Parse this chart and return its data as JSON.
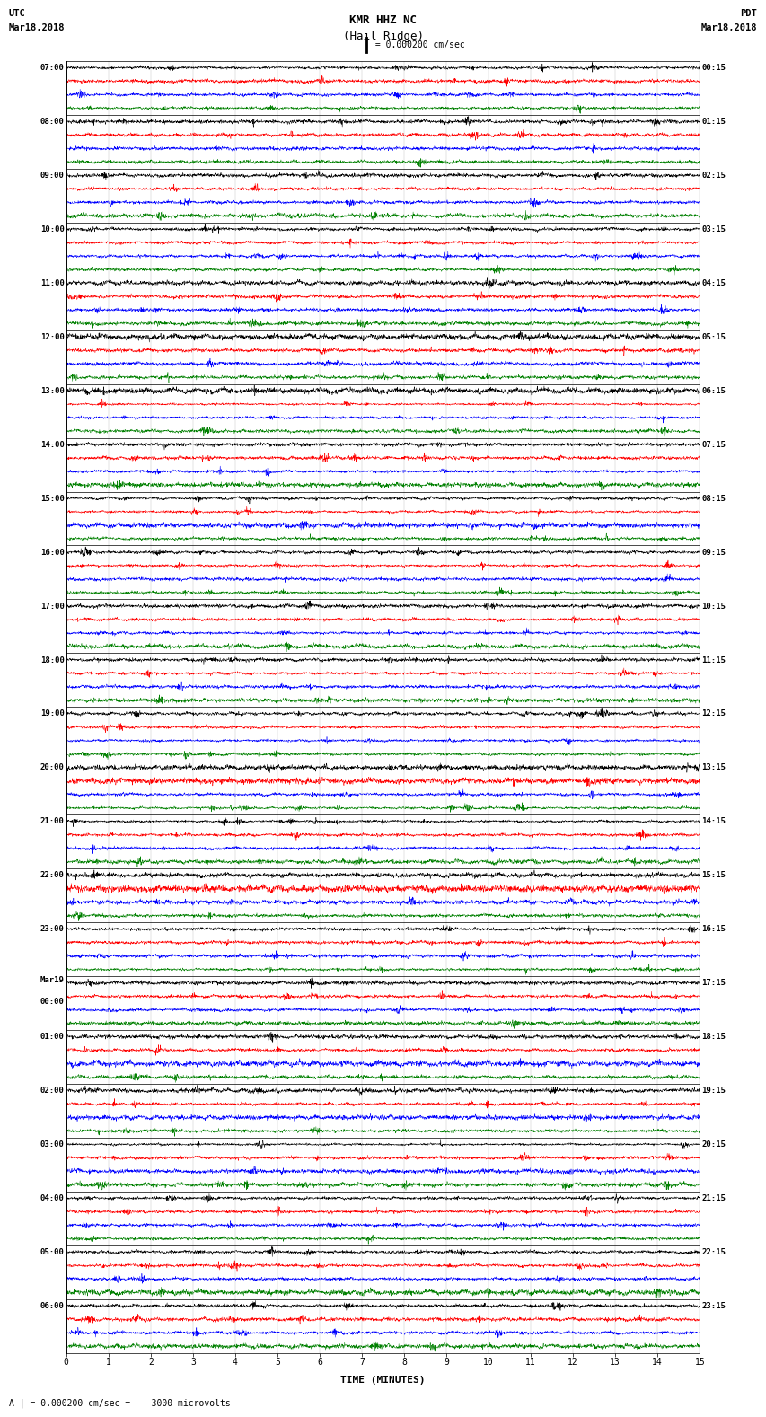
{
  "title_line1": "KMR HHZ NC",
  "title_line2": "(Hail Ridge)",
  "scale_label": "| = 0.000200 cm/sec",
  "bottom_label": "A | = 0.000200 cm/sec =    3000 microvolts",
  "xlabel": "TIME (MINUTES)",
  "utc_times": [
    "07:00",
    "08:00",
    "09:00",
    "10:00",
    "11:00",
    "12:00",
    "13:00",
    "14:00",
    "15:00",
    "16:00",
    "17:00",
    "18:00",
    "19:00",
    "20:00",
    "21:00",
    "22:00",
    "23:00",
    "Mar19\n00:00",
    "01:00",
    "02:00",
    "03:00",
    "04:00",
    "05:00",
    "06:00"
  ],
  "pdt_times": [
    "00:15",
    "01:15",
    "02:15",
    "03:15",
    "04:15",
    "05:15",
    "06:15",
    "07:15",
    "08:15",
    "09:15",
    "10:15",
    "11:15",
    "12:15",
    "13:15",
    "14:15",
    "15:15",
    "16:15",
    "17:15",
    "18:15",
    "19:15",
    "20:15",
    "21:15",
    "22:15",
    "23:15"
  ],
  "n_rows": 24,
  "n_traces_per_row": 4,
  "colors": [
    "black",
    "red",
    "blue",
    "green"
  ],
  "fig_width": 8.5,
  "fig_height": 16.13,
  "bg_color": "white",
  "n_points": 2700,
  "xmin": 0,
  "xmax": 15,
  "xticks": [
    0,
    1,
    2,
    3,
    4,
    5,
    6,
    7,
    8,
    9,
    10,
    11,
    12,
    13,
    14,
    15
  ]
}
